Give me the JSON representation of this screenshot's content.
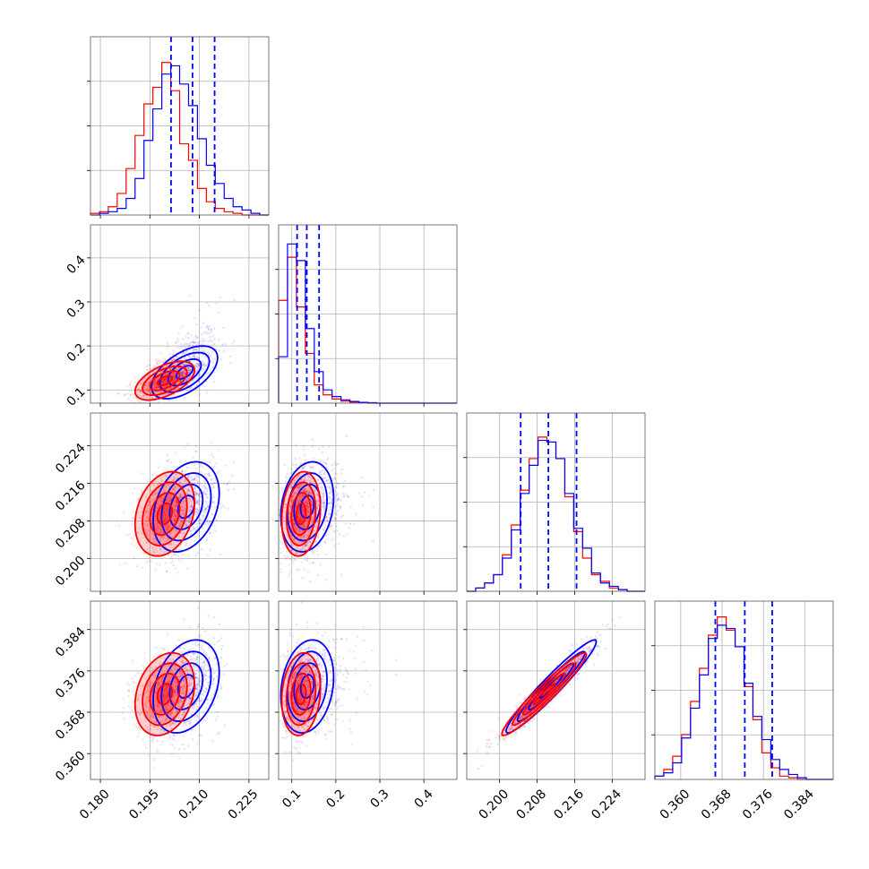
{
  "colors": {
    "series_red": "#ff0000",
    "series_blue": "#0000ff",
    "quantile_line": "#0000ff",
    "grid": "#b0b0b0"
  },
  "chart_data": {
    "type": "corner",
    "title": "",
    "grid": true,
    "series": [
      {
        "color": "#ff0000"
      },
      {
        "color": "#0000ff"
      }
    ],
    "parameters": [
      {
        "range": [
          0.177,
          0.231
        ],
        "ticks": [
          0.18,
          0.195,
          0.21,
          0.225
        ],
        "tick_labels": [
          "0.180",
          "0.195",
          "0.210",
          "0.225"
        ],
        "quantiles": [
          0.2014,
          0.2079,
          0.2146
        ],
        "hist_red": [
          0.01,
          0.02,
          0.05,
          0.13,
          0.28,
          0.48,
          0.67,
          0.77,
          0.92,
          0.75,
          0.43,
          0.33,
          0.16,
          0.08,
          0.04,
          0.02,
          0.01,
          0.0,
          0.0,
          0.0
        ],
        "hist_blue": [
          0.0,
          0.01,
          0.02,
          0.04,
          0.1,
          0.22,
          0.45,
          0.64,
          0.85,
          0.9,
          0.79,
          0.66,
          0.46,
          0.3,
          0.19,
          0.1,
          0.05,
          0.03,
          0.01,
          0.0
        ]
      },
      {
        "range": [
          0.07,
          0.475
        ],
        "ticks": [
          0.1,
          0.2,
          0.3,
          0.4
        ],
        "tick_labels": [
          "0.1",
          "0.2",
          "0.3",
          "0.4"
        ],
        "quantiles": [
          0.112,
          0.134,
          0.162
        ],
        "hist_red": [
          0.62,
          0.88,
          0.58,
          0.3,
          0.11,
          0.05,
          0.025,
          0.012,
          0.006,
          0.003,
          0.0,
          0.0,
          0.0,
          0.0,
          0.0,
          0.0,
          0.0,
          0.0,
          0.0,
          0.0
        ],
        "hist_blue": [
          0.28,
          0.96,
          0.86,
          0.45,
          0.19,
          0.08,
          0.04,
          0.02,
          0.01,
          0.005,
          0.003,
          0.0,
          0.0,
          0.0,
          0.0,
          0.0,
          0.0,
          0.0,
          0.0,
          0.0
        ]
      },
      {
        "range": [
          0.193,
          0.231
        ],
        "ticks": [
          0.2,
          0.208,
          0.216,
          0.224
        ],
        "tick_labels": [
          "0.200",
          "0.208",
          "0.216",
          "0.224"
        ],
        "quantiles": [
          0.2045,
          0.2104,
          0.2164
        ],
        "hist_red": [
          0.0,
          0.02,
          0.05,
          0.1,
          0.22,
          0.4,
          0.61,
          0.8,
          0.93,
          0.9,
          0.8,
          0.57,
          0.36,
          0.2,
          0.1,
          0.06,
          0.02,
          0.01,
          0.0,
          0.0
        ],
        "hist_blue": [
          0.0,
          0.02,
          0.05,
          0.1,
          0.2,
          0.37,
          0.59,
          0.76,
          0.91,
          0.9,
          0.8,
          0.59,
          0.38,
          0.26,
          0.11,
          0.05,
          0.03,
          0.01,
          0.0,
          0.0
        ]
      },
      {
        "range": [
          0.355,
          0.3895
        ],
        "ticks": [
          0.36,
          0.368,
          0.376,
          0.384
        ],
        "tick_labels": [
          "0.360",
          "0.368",
          "0.376",
          "0.384"
        ],
        "quantiles": [
          0.3667,
          0.3724,
          0.3777
        ],
        "hist_red": [
          0.02,
          0.06,
          0.14,
          0.27,
          0.47,
          0.67,
          0.87,
          0.98,
          0.9,
          0.8,
          0.56,
          0.36,
          0.16,
          0.07,
          0.02,
          0.01,
          0.0,
          0.0,
          0.0,
          0.0
        ],
        "hist_blue": [
          0.02,
          0.04,
          0.1,
          0.25,
          0.43,
          0.63,
          0.85,
          0.93,
          0.91,
          0.8,
          0.58,
          0.38,
          0.24,
          0.12,
          0.06,
          0.03,
          0.01,
          0.0,
          0.0,
          0.0
        ]
      }
    ],
    "pairs": [
      {
        "row": 1,
        "col": 0,
        "red_center": [
          0.1995,
          0.121
        ],
        "red_sigma": [
          0.0045,
          0.022
        ],
        "red_rho": 0.55,
        "blue_center": [
          0.2055,
          0.14
        ],
        "blue_sigma": [
          0.005,
          0.03
        ],
        "blue_rho": 0.55
      },
      {
        "row": 2,
        "col": 0,
        "red_center": [
          0.1995,
          0.2095
        ],
        "red_sigma": [
          0.0045,
          0.0045
        ],
        "red_rho": 0.25,
        "blue_center": [
          0.206,
          0.211
        ],
        "blue_sigma": [
          0.005,
          0.0048
        ],
        "blue_rho": 0.3
      },
      {
        "row": 2,
        "col": 1,
        "red_center": [
          0.121,
          0.2095
        ],
        "red_sigma": [
          0.022,
          0.0045
        ],
        "red_rho": 0.15,
        "blue_center": [
          0.135,
          0.211
        ],
        "blue_sigma": [
          0.03,
          0.0048
        ],
        "blue_rho": 0.2
      },
      {
        "row": 3,
        "col": 0,
        "red_center": [
          0.1995,
          0.3715
        ],
        "red_sigma": [
          0.0045,
          0.004
        ],
        "red_rho": 0.25,
        "blue_center": [
          0.206,
          0.373
        ],
        "blue_sigma": [
          0.005,
          0.0045
        ],
        "blue_rho": 0.3
      },
      {
        "row": 3,
        "col": 1,
        "red_center": [
          0.121,
          0.3715
        ],
        "red_sigma": [
          0.022,
          0.004
        ],
        "red_rho": 0.15,
        "blue_center": [
          0.135,
          0.373
        ],
        "blue_sigma": [
          0.03,
          0.0045
        ],
        "blue_rho": 0.2
      },
      {
        "row": 3,
        "col": 2,
        "red_center": [
          0.2095,
          0.3715
        ],
        "red_sigma": [
          0.0045,
          0.004
        ],
        "red_rho": 0.96,
        "blue_center": [
          0.211,
          0.373
        ],
        "blue_sigma": [
          0.0048,
          0.0045
        ],
        "blue_rho": 0.96
      }
    ]
  }
}
